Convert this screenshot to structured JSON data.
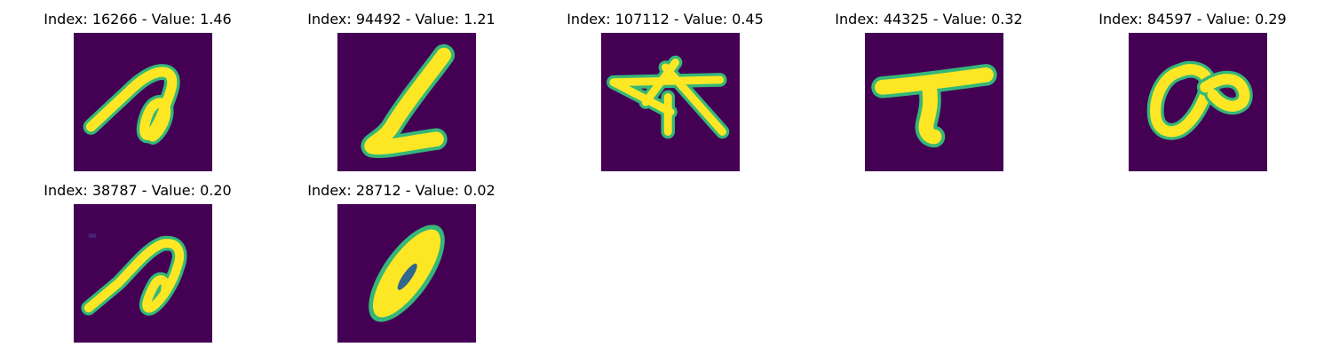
{
  "figure": {
    "background": "#ffffff",
    "image_background_color": "#440154",
    "stroke_color": "#fde725",
    "stroke_edge_color": "#35b779",
    "panels": [
      {
        "title": "Index: 16266 - Value: 1.46",
        "glyph": "handwritten-loop-stroke"
      },
      {
        "title": "Index: 94492 - Value: 1.21",
        "glyph": "handwritten-l-stroke"
      },
      {
        "title": "Index: 107112 - Value: 0.45",
        "glyph": "handwritten-crossed-strokes"
      },
      {
        "title": "Index: 44325 - Value: 0.32",
        "glyph": "handwritten-t-stroke"
      },
      {
        "title": "Index: 84597 - Value: 0.29",
        "glyph": "handwritten-double-loop"
      },
      {
        "title": "Index: 38787 - Value: 0.20",
        "glyph": "handwritten-loop-stroke"
      },
      {
        "title": "Index: 28712 - Value: 0.02",
        "glyph": "handwritten-slanted-zero"
      }
    ]
  }
}
